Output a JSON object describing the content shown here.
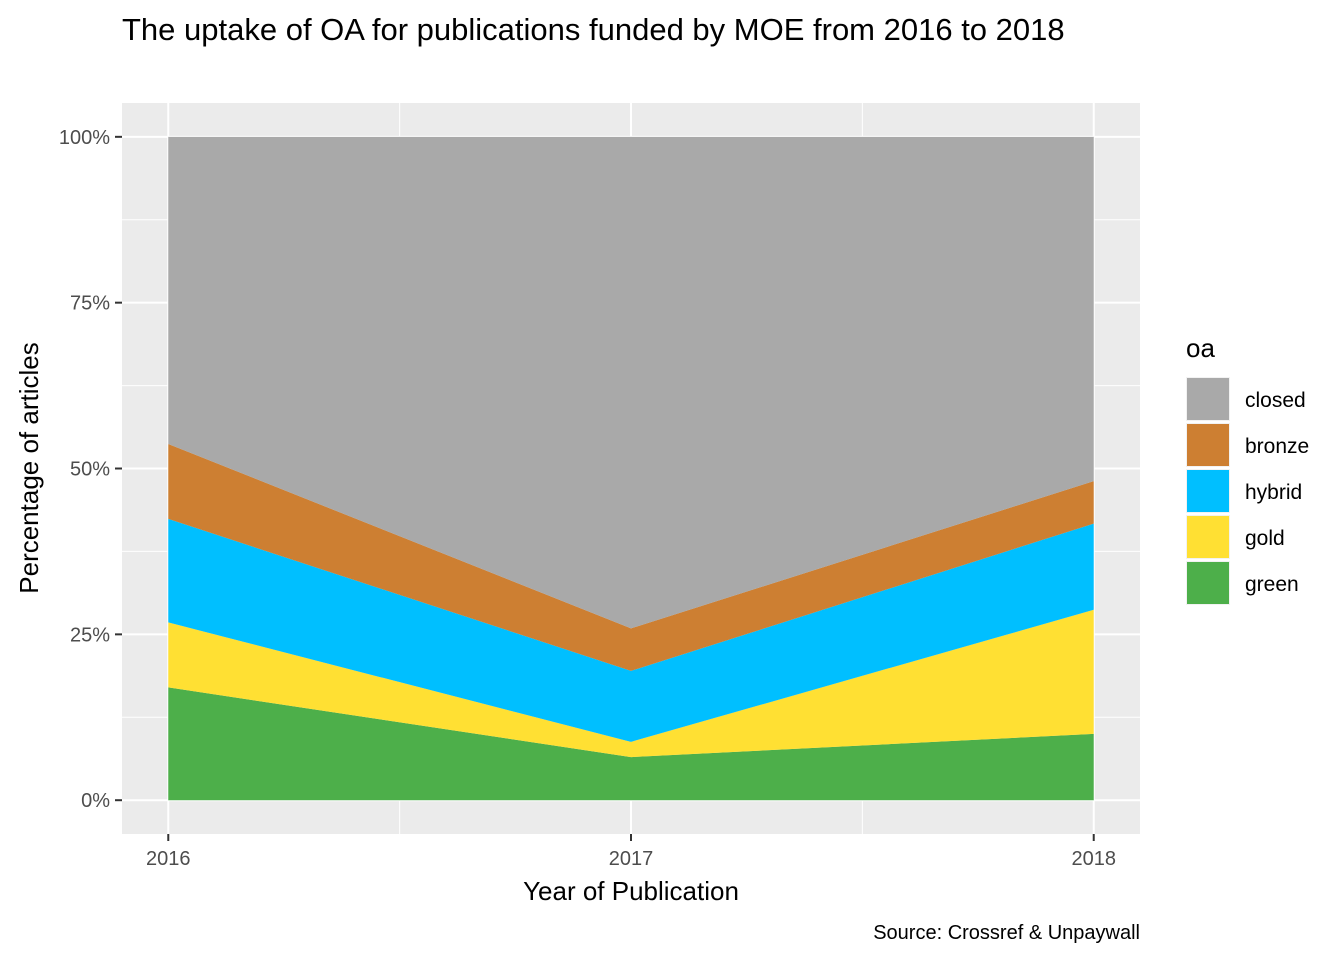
{
  "chart_data": {
    "type": "area",
    "stacked": true,
    "title": "The uptake of OA for publications funded by MOE from 2016 to 2018",
    "xlabel": "Year of Publication",
    "ylabel": "Percentage of articles",
    "caption": "Source: Crossref & Unpaywall",
    "x": [
      2016,
      2017,
      2018
    ],
    "x_tick_labels": [
      "2016",
      "2017",
      "2018"
    ],
    "y_tick_labels": [
      "0%",
      "25%",
      "50%",
      "75%",
      "100%"
    ],
    "y_ticks": [
      0,
      25,
      50,
      75,
      100
    ],
    "ylim": [
      0,
      100
    ],
    "xlim": [
      2015.9,
      2018.1
    ],
    "grid": true,
    "legend": {
      "title": "oa",
      "position": "right"
    },
    "series": [
      {
        "name": "green",
        "color": "#4daf4a",
        "values": [
          17.0,
          6.5,
          10.0
        ]
      },
      {
        "name": "gold",
        "color": "#ffe033",
        "values": [
          9.8,
          2.3,
          18.7
        ]
      },
      {
        "name": "hybrid",
        "color": "#00bfff",
        "values": [
          15.6,
          10.7,
          13.0
        ]
      },
      {
        "name": "bronze",
        "color": "#cd7f32",
        "values": [
          11.3,
          6.4,
          6.4
        ]
      },
      {
        "name": "closed",
        "color": "#a9a9a9",
        "values": [
          46.3,
          74.1,
          51.9
        ]
      }
    ],
    "legend_order": [
      "closed",
      "bronze",
      "hybrid",
      "gold",
      "green"
    ]
  }
}
